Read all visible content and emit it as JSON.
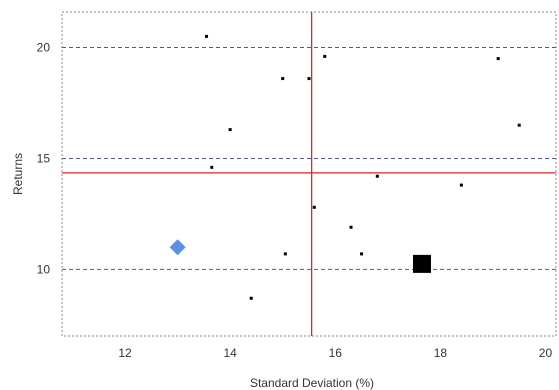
{
  "chart_data": {
    "type": "scatter",
    "title": "",
    "xlabel": "Standard Deviation (%)",
    "ylabel": "Returns",
    "xlim": [
      10.8,
      20.2
    ],
    "ylim": [
      7.0,
      21.6
    ],
    "x_ticks": [
      12,
      14,
      16,
      18,
      20
    ],
    "y_ticks": [
      10,
      15,
      20
    ],
    "x_tick_labels": [
      "12",
      "14",
      "16",
      "18",
      "20"
    ],
    "y_tick_labels": [
      "10",
      "15",
      "20"
    ],
    "grid": "horizontal dashed",
    "series": [
      {
        "marker": "dot",
        "color": "#000000",
        "points": [
          {
            "x": 13.55,
            "y": 20.5
          },
          {
            "x": 15.0,
            "y": 18.6
          },
          {
            "x": 15.5,
            "y": 18.6
          },
          {
            "x": 15.8,
            "y": 19.6
          },
          {
            "x": 19.1,
            "y": 19.5
          },
          {
            "x": 14.0,
            "y": 16.3
          },
          {
            "x": 19.5,
            "y": 16.5
          },
          {
            "x": 13.65,
            "y": 14.6
          },
          {
            "x": 16.8,
            "y": 14.2
          },
          {
            "x": 18.4,
            "y": 13.8
          },
          {
            "x": 15.6,
            "y": 12.8
          },
          {
            "x": 16.3,
            "y": 11.9
          },
          {
            "x": 15.05,
            "y": 10.7
          },
          {
            "x": 16.5,
            "y": 10.7
          },
          {
            "x": 14.4,
            "y": 8.7
          }
        ]
      },
      {
        "marker": "diamond",
        "color": "#5b8fe8",
        "points": [
          {
            "x": 13.0,
            "y": 11.0
          }
        ]
      },
      {
        "marker": "square",
        "color": "#000000",
        "points": [
          {
            "x": 17.65,
            "y": 10.25
          }
        ]
      }
    ],
    "reference_lines": {
      "vertical_x": 15.55,
      "horizontal_y": 14.35,
      "color": "#d9262c"
    },
    "colors": {
      "grid": "#555588",
      "frame": "#888888",
      "tick_label": "#333333"
    }
  }
}
